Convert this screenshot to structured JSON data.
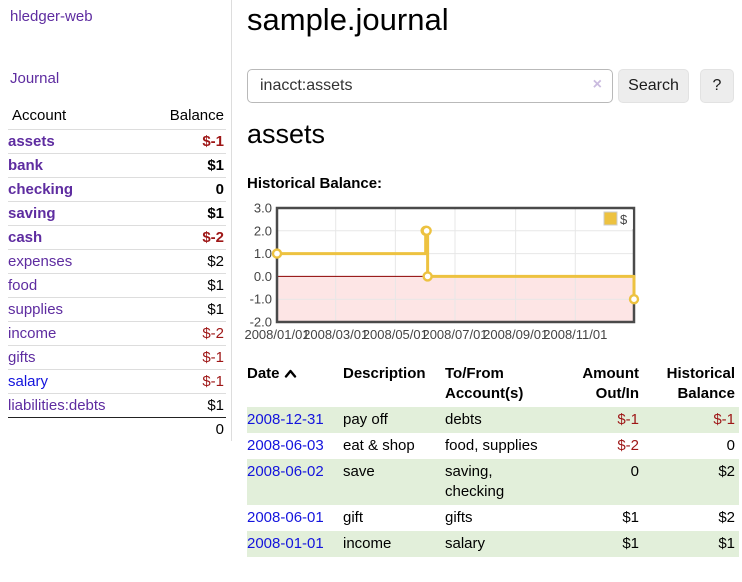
{
  "app": {
    "brand": "hledger-web"
  },
  "colors": {
    "link_purple": "#5e2ca0",
    "link_blue": "#1414dd",
    "negative_red": "#9e1616",
    "row_green": "#e2efda",
    "chart_line_gold": "#edc240",
    "chart_negative_region": "#fde5e5",
    "chart_zero_line": "#8b0000",
    "chart_border": "#4a4a4a",
    "chart_grid": "#e7e7e7"
  },
  "sidebar": {
    "nav_label": "Journal",
    "accounts_table": {
      "header_account": "Account",
      "header_balance": "Balance",
      "rows": [
        {
          "label": "assets",
          "indent": 1,
          "bold": true,
          "balance": "$-1",
          "negative": true
        },
        {
          "label": "bank",
          "indent": 2,
          "bold": true,
          "balance": "$1",
          "negative": false
        },
        {
          "label": "checking",
          "indent": 3,
          "bold": true,
          "balance": "0",
          "negative": false
        },
        {
          "label": "saving",
          "indent": 3,
          "bold": true,
          "balance": "$1",
          "negative": false
        },
        {
          "label": "cash",
          "indent": 2,
          "bold": true,
          "balance": "$-2",
          "negative": true
        },
        {
          "label": "expenses",
          "indent": 1,
          "bold": false,
          "balance": "$2",
          "negative": false
        },
        {
          "label": "food",
          "indent": 2,
          "bold": false,
          "balance": "$1",
          "negative": false
        },
        {
          "label": "supplies",
          "indent": 2,
          "bold": false,
          "balance": "$1",
          "negative": false
        },
        {
          "label": "income",
          "indent": 1,
          "bold": false,
          "balance": "$-2",
          "negative": true
        },
        {
          "label": "gifts",
          "indent": 2,
          "bold": false,
          "balance": "$-1",
          "negative": true
        },
        {
          "label": "salary",
          "indent": 2,
          "bold": false,
          "balance": "$-1",
          "negative": true,
          "link_style": "blue"
        },
        {
          "label": "liabilities:debts",
          "indent": 1,
          "bold": false,
          "balance": "$1",
          "negative": false
        }
      ],
      "total": "0"
    }
  },
  "main": {
    "title": "sample.journal",
    "search": {
      "value": "inacct:assets",
      "clear_icon": "×",
      "search_label": "Search",
      "help_label": "?"
    },
    "account_heading": "assets",
    "chart_label": "Historical Balance:",
    "chart_data": {
      "type": "line",
      "step": true,
      "title": "Historical Balance",
      "series": [
        {
          "name": "$",
          "color": "#edc240",
          "points": [
            [
              "2008-01-01",
              1
            ],
            [
              "2008-06-01",
              2
            ],
            [
              "2008-06-02",
              2
            ],
            [
              "2008-06-03",
              0
            ],
            [
              "2008-12-31",
              -1
            ]
          ]
        }
      ],
      "x_range": [
        "2008-01-01",
        "2008-12-31"
      ],
      "x_ticks": [
        {
          "date": "2008-01-01",
          "label": "2008/01/01"
        },
        {
          "date": "2008-03-01",
          "label": "2008/03/01"
        },
        {
          "date": "2008-05-01",
          "label": "2008/05/01"
        },
        {
          "date": "2008-07-01",
          "label": "2008/07/01"
        },
        {
          "date": "2008-09-01",
          "label": "2008/09/01"
        },
        {
          "date": "2008-11-01",
          "label": "2008/11/01"
        }
      ],
      "ylim": [
        -2,
        3
      ],
      "y_ticks": [
        3.0,
        2.0,
        1.0,
        0.0,
        -1.0,
        -2.0
      ],
      "grid": true,
      "negative_region_color": "#fde5e5",
      "zero_line_color": "#8b0000",
      "legend": {
        "label": "$",
        "position": "top-right"
      }
    },
    "register_table": {
      "headers": {
        "date": "Date",
        "description": "Description",
        "accounts": "To/From Account(s)",
        "amount": "Amount Out/In",
        "balance": "Historical Balance"
      },
      "rows": [
        {
          "date": "2008-12-31",
          "description": "pay off",
          "accounts": "debts",
          "amount": "$-1",
          "amount_negative": true,
          "balance": "$-1",
          "balance_negative": true
        },
        {
          "date": "2008-06-03",
          "description": "eat & shop",
          "accounts": "food, supplies",
          "amount": "$-2",
          "amount_negative": true,
          "balance": "0",
          "balance_negative": false
        },
        {
          "date": "2008-06-02",
          "description": "save",
          "accounts": "saving, checking",
          "amount": "0",
          "amount_negative": false,
          "balance": "$2",
          "balance_negative": false
        },
        {
          "date": "2008-06-01",
          "description": "gift",
          "accounts": "gifts",
          "amount": "$1",
          "amount_negative": false,
          "balance": "$2",
          "balance_negative": false
        },
        {
          "date": "2008-01-01",
          "description": "income",
          "accounts": "salary",
          "amount": "$1",
          "amount_negative": false,
          "balance": "$1",
          "balance_negative": false
        }
      ]
    }
  }
}
